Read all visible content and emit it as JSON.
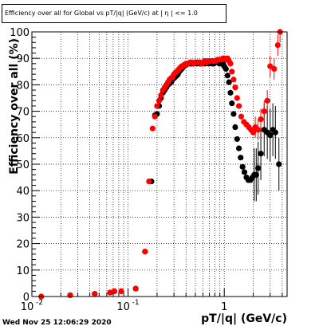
{
  "title": "Efficiency over all for Global vs pT/|q| (GeV/c) at | η | <= 1.0",
  "timestamp": "Wed Nov 25 12:06:29 2020",
  "chart_data": {
    "type": "scatter",
    "title": "Efficiency over all for Global vs pT/|q| (GeV/c) at | η | <= 1.0",
    "xlabel": "pT/|q| (GeV/c)",
    "ylabel": "Efficiency over all (%)",
    "xscale": "log",
    "xlim": [
      0.01,
      4.5
    ],
    "ylim": [
      0,
      100
    ],
    "grid": true,
    "x_tick_labels": [
      {
        "value": 0.01,
        "label": "10",
        "exp": "-2"
      },
      {
        "value": 0.1,
        "label": "10",
        "exp": "-1"
      },
      {
        "value": 1,
        "label": "1",
        "exp": ""
      }
    ],
    "y_tick_labels": [
      {
        "value": 0,
        "label": "0"
      },
      {
        "value": 10,
        "label": "10"
      },
      {
        "value": 20,
        "label": "20"
      },
      {
        "value": 30,
        "label": "30"
      },
      {
        "value": 40,
        "label": "40"
      },
      {
        "value": 50,
        "label": "50"
      },
      {
        "value": 60,
        "label": "60"
      },
      {
        "value": 70,
        "label": "70"
      },
      {
        "value": 80,
        "label": "80"
      },
      {
        "value": 90,
        "label": "90"
      },
      {
        "value": 100,
        "label": "100"
      }
    ],
    "series": [
      {
        "color": "#000000",
        "x": [
          0.0125,
          0.025,
          0.045,
          0.065,
          0.072,
          0.085,
          0.12,
          0.15,
          0.175,
          0.19,
          0.2,
          0.21,
          0.22,
          0.23,
          0.24,
          0.25,
          0.26,
          0.27,
          0.28,
          0.29,
          0.3,
          0.31,
          0.32,
          0.33,
          0.34,
          0.35,
          0.36,
          0.37,
          0.38,
          0.39,
          0.4,
          0.42,
          0.44,
          0.46,
          0.48,
          0.5,
          0.52,
          0.54,
          0.56,
          0.58,
          0.6,
          0.63,
          0.66,
          0.69,
          0.72,
          0.75,
          0.78,
          0.81,
          0.85,
          0.89,
          0.93,
          0.97,
          1.0,
          1.04,
          1.08,
          1.12,
          1.16,
          1.2,
          1.25,
          1.3,
          1.36,
          1.42,
          1.48,
          1.55,
          1.62,
          1.7,
          1.78,
          1.87,
          1.96,
          2.05,
          2.15,
          2.25,
          2.4,
          2.6,
          2.8,
          3.0,
          3.2,
          3.4,
          3.7
        ],
        "y": [
          0,
          0.5,
          1,
          1.5,
          2,
          2,
          3,
          17,
          43.5,
          68.5,
          69,
          72,
          75,
          77,
          78,
          79,
          80,
          80.5,
          81,
          82,
          82.5,
          83,
          83.5,
          84,
          85,
          85.5,
          86,
          86.5,
          87,
          87.5,
          87.5,
          88,
          88,
          88,
          88,
          88.5,
          88,
          88.5,
          88,
          88,
          88.5,
          88,
          88.5,
          88,
          88.5,
          88,
          88,
          88.5,
          88.5,
          88,
          88,
          88,
          87,
          86,
          83.5,
          81,
          77,
          73,
          69,
          64,
          59.5,
          56,
          52.5,
          49,
          47,
          45,
          44,
          44,
          45,
          46,
          46,
          48.5,
          54,
          63,
          62,
          61,
          63,
          62,
          50
        ]
      },
      {
        "color": "#ff0000",
        "x": [
          0.0125,
          0.025,
          0.045,
          0.065,
          0.072,
          0.085,
          0.12,
          0.15,
          0.165,
          0.18,
          0.19,
          0.2,
          0.21,
          0.22,
          0.23,
          0.24,
          0.25,
          0.26,
          0.27,
          0.28,
          0.29,
          0.3,
          0.31,
          0.32,
          0.33,
          0.34,
          0.35,
          0.36,
          0.37,
          0.38,
          0.39,
          0.4,
          0.42,
          0.44,
          0.46,
          0.48,
          0.5,
          0.52,
          0.54,
          0.56,
          0.58,
          0.6,
          0.63,
          0.66,
          0.69,
          0.72,
          0.75,
          0.78,
          0.81,
          0.85,
          0.89,
          0.93,
          0.97,
          1.0,
          1.04,
          1.08,
          1.12,
          1.16,
          1.2,
          1.25,
          1.3,
          1.36,
          1.42,
          1.5,
          1.6,
          1.7,
          1.8,
          1.9,
          2.0,
          2.1,
          2.25,
          2.4,
          2.6,
          2.8,
          3.0,
          3.3,
          3.6,
          3.8
        ],
        "y": [
          0,
          0.5,
          1,
          1.5,
          2,
          2,
          3,
          17,
          43.5,
          63.5,
          68,
          72,
          74,
          76,
          78,
          79,
          80,
          81,
          82,
          82.5,
          83,
          84,
          84.5,
          85,
          85.5,
          86,
          86.5,
          87,
          87,
          87.5,
          87.5,
          88,
          88,
          88.5,
          88.5,
          88,
          88.5,
          88.5,
          88.5,
          88.5,
          88,
          88.5,
          89,
          88.5,
          89,
          89,
          89,
          89,
          89,
          89.5,
          89.5,
          89.5,
          90,
          90,
          89.5,
          90,
          89,
          88,
          85,
          82,
          79,
          75,
          72,
          68,
          66,
          65,
          64,
          63,
          62,
          64,
          63,
          67,
          70,
          74,
          87,
          86,
          95,
          100
        ]
      }
    ]
  }
}
